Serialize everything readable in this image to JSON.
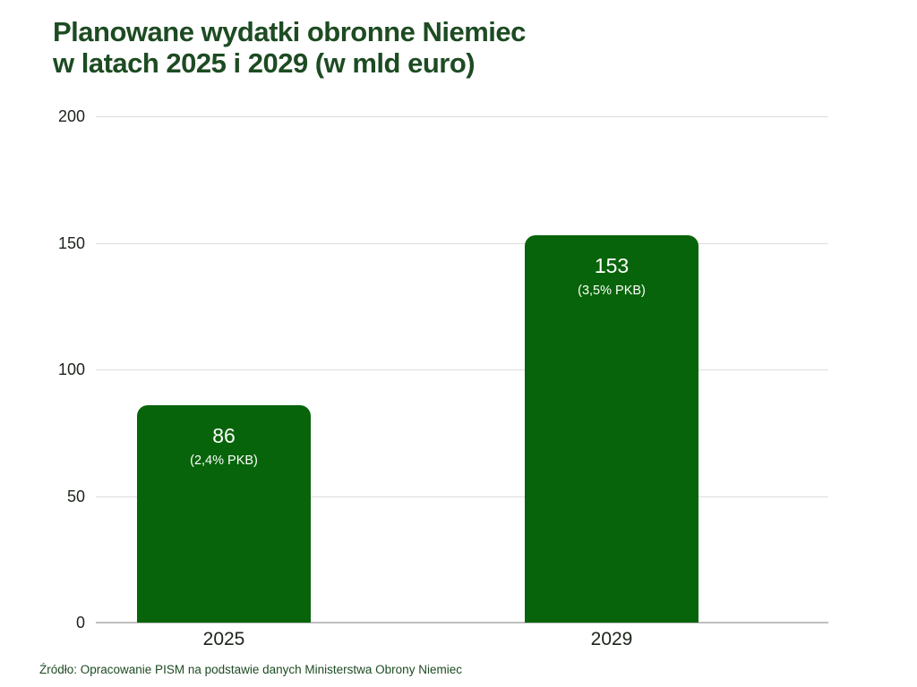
{
  "page": {
    "title_line1": "Planowane wydatki obronne Niemiec",
    "title_line2": "w latach 2025 i 2029 (w mld euro)",
    "source": "Źródło: Opracowanie PISM na podstawie danych Ministerstwa Obrony Niemiec"
  },
  "colors": {
    "bar": "#08640a",
    "title": "#1d4b22",
    "axis_labels": "#1b241b",
    "gridline": "#dcdcdc",
    "baseline": "#bfbfbf",
    "bar_labels": "#ffffff",
    "source": "#1d4b22"
  },
  "chart_data": {
    "type": "bar",
    "title": "Planowane wydatki obronne Niemiec w latach 2025 i 2029 (w mld euro)",
    "categories": [
      "2025",
      "2029"
    ],
    "values": [
      86,
      153
    ],
    "bar_sublabels": [
      "(2,4% PKB)",
      "(3,5% PKB)"
    ],
    "xlabel": "",
    "ylabel": "",
    "ylim": [
      0,
      200
    ],
    "yticks": [
      0,
      50,
      100,
      150,
      200
    ],
    "grid": true,
    "legend": false,
    "source": "Źródło: Opracowanie PISM na podstawie danych Ministerstwa Obrony Niemiec"
  }
}
